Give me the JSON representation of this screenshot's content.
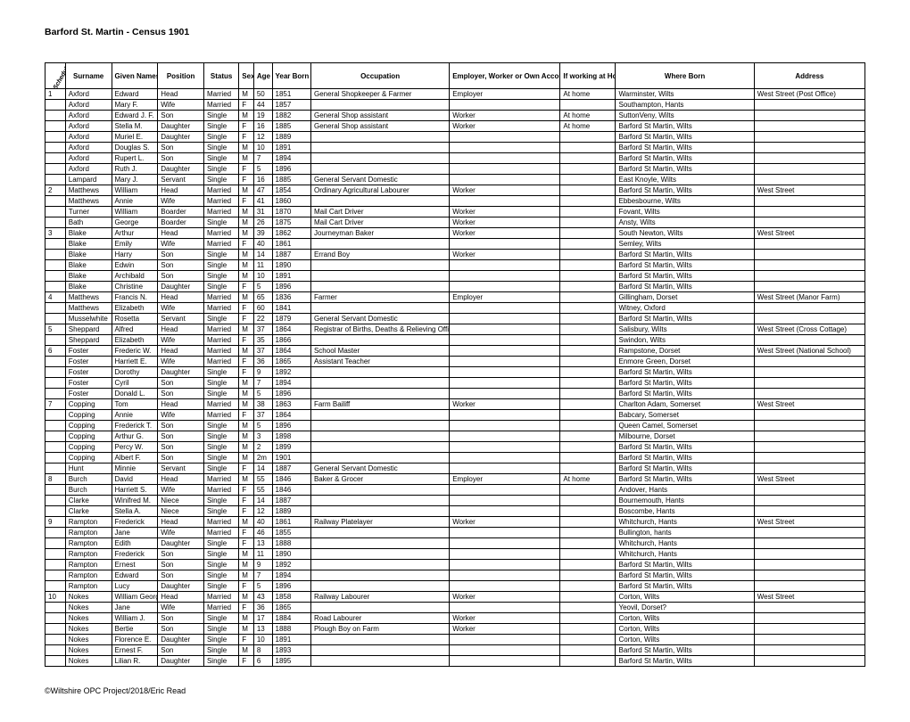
{
  "title": "Barford St. Martin - Census 1901",
  "footer": "©Wiltshire OPC Project/2018/Eric Read",
  "columns": [
    "Schedule",
    "Surname",
    "Given Names",
    "Position",
    "Status",
    "Sex",
    "Age",
    "Year Born",
    "Occupation",
    "Employer, Worker or Own Account",
    "If working at Home",
    "Where Born",
    "Address"
  ],
  "rows": [
    [
      "1",
      "Axford",
      "Edward",
      "Head",
      "Married",
      "M",
      "50",
      "1851",
      "General Shopkeeper & Farmer",
      "Employer",
      "At home",
      "Warminster, Wilts",
      "West Street (Post Office)"
    ],
    [
      "",
      "Axford",
      "Mary F.",
      "Wife",
      "Married",
      "F",
      "44",
      "1857",
      "",
      "",
      "",
      "Southampton, Hants",
      ""
    ],
    [
      "",
      "Axford",
      "Edward J. F.",
      "Son",
      "Single",
      "M",
      "19",
      "1882",
      "General Shop assistant",
      "Worker",
      "At home",
      "SuttonVeny, Wilts",
      ""
    ],
    [
      "",
      "Axford",
      "Stella M.",
      "Daughter",
      "Single",
      "F",
      "16",
      "1885",
      "General Shop assistant",
      "Worker",
      "At home",
      "Barford St Martin, Wilts",
      ""
    ],
    [
      "",
      "Axford",
      "Muriel E.",
      "Daughter",
      "Single",
      "F",
      "12",
      "1889",
      "",
      "",
      "",
      "Barford St Martin, Wilts",
      ""
    ],
    [
      "",
      "Axford",
      "Douglas S.",
      "Son",
      "Single",
      "M",
      "10",
      "1891",
      "",
      "",
      "",
      "Barford St Martin, Wilts",
      ""
    ],
    [
      "",
      "Axford",
      "Rupert L.",
      "Son",
      "Single",
      "M",
      "7",
      "1894",
      "",
      "",
      "",
      "Barford St Martin, Wilts",
      ""
    ],
    [
      "",
      "Axford",
      "Ruth J.",
      "Daughter",
      "Single",
      "F",
      "5",
      "1896",
      "",
      "",
      "",
      "Barford St Martin, Wilts",
      ""
    ],
    [
      "",
      "Lampard",
      "Mary J.",
      "Servant",
      "Single",
      "F",
      "16",
      "1885",
      "General Servant Domestic",
      "",
      "",
      "East Knoyle, Wilts",
      ""
    ],
    [
      "2",
      "Matthews",
      "William",
      "Head",
      "Married",
      "M",
      "47",
      "1854",
      "Ordinary Agricultural Labourer",
      "Worker",
      "",
      "Barford St Martin, Wilts",
      "West Street"
    ],
    [
      "",
      "Matthews",
      "Annie",
      "Wife",
      "Married",
      "F",
      "41",
      "1860",
      "",
      "",
      "",
      "Ebbesbourne, Wilts",
      ""
    ],
    [
      "",
      "Turner",
      "William",
      "Boarder",
      "Married",
      "M",
      "31",
      "1870",
      "Mail Cart Driver",
      "Worker",
      "",
      "Fovant, Wilts",
      ""
    ],
    [
      "",
      "Bath",
      "George",
      "Boarder",
      "Single",
      "M",
      "26",
      "1875",
      "Mail Cart Driver",
      "Worker",
      "",
      "Ansty, Wilts",
      ""
    ],
    [
      "3",
      "Blake",
      "Arthur",
      "Head",
      "Married",
      "M",
      "39",
      "1862",
      "Journeyman Baker",
      "Worker",
      "",
      "South Newton, Wilts",
      "West Street"
    ],
    [
      "",
      "Blake",
      "Emily",
      "Wife",
      "Married",
      "F",
      "40",
      "1861",
      "",
      "",
      "",
      "Semley, Wilts",
      ""
    ],
    [
      "",
      "Blake",
      "Harry",
      "Son",
      "Single",
      "M",
      "14",
      "1887",
      "Errand Boy",
      "Worker",
      "",
      "Barford St Martin, Wilts",
      ""
    ],
    [
      "",
      "Blake",
      "Edwin",
      "Son",
      "Single",
      "M",
      "11",
      "1890",
      "",
      "",
      "",
      "Barford St Martin, Wilts",
      ""
    ],
    [
      "",
      "Blake",
      "Archibald",
      "Son",
      "Single",
      "M",
      "10",
      "1891",
      "",
      "",
      "",
      "Barford St Martin, Wilts",
      ""
    ],
    [
      "",
      "Blake",
      "Christine",
      "Daughter",
      "Single",
      "F",
      "5",
      "1896",
      "",
      "",
      "",
      "Barford St Martin, Wilts",
      ""
    ],
    [
      "4",
      "Matthews",
      "Francis N.",
      "Head",
      "Married",
      "M",
      "65",
      "1836",
      "Farmer",
      "Employer",
      "",
      "Gillingham, Dorset",
      "West Street (Manor Farm)"
    ],
    [
      "",
      "Matthews",
      "Elizabeth",
      "Wife",
      "Married",
      "F",
      "60",
      "1841",
      "",
      "",
      "",
      "Witney, Oxford",
      ""
    ],
    [
      "",
      "Musselwhite",
      "Rosetta",
      "Servant",
      "Single",
      "F",
      "22",
      "1879",
      "General Servant Domestic",
      "",
      "",
      "Barford St Martin, Wilts",
      ""
    ],
    [
      "5",
      "Sheppard",
      "Alfred",
      "Head",
      "Married",
      "M",
      "37",
      "1864",
      "Registrar of Births, Deaths & Relieving Officer",
      "",
      "",
      "Salisbury, Wilts",
      "West Street (Cross Cottage)"
    ],
    [
      "",
      "Sheppard",
      "Elizabeth",
      "Wife",
      "Married",
      "F",
      "35",
      "1866",
      "",
      "",
      "",
      "Swindon, Wilts",
      ""
    ],
    [
      "6",
      "Foster",
      "Frederic W.",
      "Head",
      "Married",
      "M",
      "37",
      "1864",
      "School Master",
      "",
      "",
      "Rampstone, Dorset",
      "West Street (National School)"
    ],
    [
      "",
      "Foster",
      "Harriett E.",
      "Wife",
      "Married",
      "F",
      "36",
      "1865",
      "Assistant Teacher",
      "",
      "",
      "Enmore Green, Dorset",
      ""
    ],
    [
      "",
      "Foster",
      "Dorothy",
      "Daughter",
      "Single",
      "F",
      "9",
      "1892",
      "",
      "",
      "",
      "Barford St Martin, Wilts",
      ""
    ],
    [
      "",
      "Foster",
      "Cyril",
      "Son",
      "Single",
      "M",
      "7",
      "1894",
      "",
      "",
      "",
      "Barford St Martin, Wilts",
      ""
    ],
    [
      "",
      "Foster",
      "Donald L.",
      "Son",
      "Single",
      "M",
      "5",
      "1896",
      "",
      "",
      "",
      "Barford St Martin, Wilts",
      ""
    ],
    [
      "7",
      "Copping",
      "Tom",
      "Head",
      "Married",
      "M",
      "38",
      "1863",
      "Farm Bailiff",
      "Worker",
      "",
      "Charlton Adam, Somerset",
      "West Street"
    ],
    [
      "",
      "Copping",
      "Annie",
      "Wife",
      "Married",
      "F",
      "37",
      "1864",
      "",
      "",
      "",
      "Babcary, Somerset",
      ""
    ],
    [
      "",
      "Copping",
      "Frederick T.",
      "Son",
      "Single",
      "M",
      "5",
      "1896",
      "",
      "",
      "",
      "Queen Camel, Somerset",
      ""
    ],
    [
      "",
      "Copping",
      "Arthur G.",
      "Son",
      "Single",
      "M",
      "3",
      "1898",
      "",
      "",
      "",
      "Milbourne, Dorset",
      ""
    ],
    [
      "",
      "Copping",
      "Percy W.",
      "Son",
      "Single",
      "M",
      "2",
      "1899",
      "",
      "",
      "",
      "Barford St Martin, Wilts",
      ""
    ],
    [
      "",
      "Copping",
      "Albert F.",
      "Son",
      "Single",
      "M",
      "2m",
      "1901",
      "",
      "",
      "",
      "Barford St Martin, Wilts",
      ""
    ],
    [
      "",
      "Hunt",
      "Minnie",
      "Servant",
      "Single",
      "F",
      "14",
      "1887",
      "General Servant Domestic",
      "",
      "",
      "Barford St Martin, Wilts",
      ""
    ],
    [
      "8",
      "Burch",
      "David",
      "Head",
      "Married",
      "M",
      "55",
      "1846",
      "Baker & Grocer",
      "Employer",
      "At home",
      "Barford St Martin, Wilts",
      "West Street"
    ],
    [
      "",
      "Burch",
      "Harriett S.",
      "Wife",
      "Married",
      "F",
      "55",
      "1846",
      "",
      "",
      "",
      "Andover, Hants",
      ""
    ],
    [
      "",
      "Clarke",
      "Winifred M.",
      "Niece",
      "Single",
      "F",
      "14",
      "1887",
      "",
      "",
      "",
      "Bournemouth, Hants",
      ""
    ],
    [
      "",
      "Clarke",
      "Stella A.",
      "Niece",
      "Single",
      "F",
      "12",
      "1889",
      "",
      "",
      "",
      "Boscombe, Hants",
      ""
    ],
    [
      "9",
      "Rampton",
      "Frederick",
      "Head",
      "Married",
      "M",
      "40",
      "1861",
      "Railway Platelayer",
      "Worker",
      "",
      "Whitchurch, Hants",
      "West Street"
    ],
    [
      "",
      "Rampton",
      "Jane",
      "Wife",
      "Married",
      "F",
      "46",
      "1855",
      "",
      "",
      "",
      "Bullington, hants",
      ""
    ],
    [
      "",
      "Rampton",
      "Edith",
      "Daughter",
      "Single",
      "F",
      "13",
      "1888",
      "",
      "",
      "",
      "Whitchurch, Hants",
      ""
    ],
    [
      "",
      "Rampton",
      "Frederick",
      "Son",
      "Single",
      "M",
      "11",
      "1890",
      "",
      "",
      "",
      "Whitchurch, Hants",
      ""
    ],
    [
      "",
      "Rampton",
      "Ernest",
      "Son",
      "Single",
      "M",
      "9",
      "1892",
      "",
      "",
      "",
      "Barford St Martin, Wilts",
      ""
    ],
    [
      "",
      "Rampton",
      "Edward",
      "Son",
      "Single",
      "M",
      "7",
      "1894",
      "",
      "",
      "",
      "Barford St Martin, Wilts",
      ""
    ],
    [
      "",
      "Rampton",
      "Lucy",
      "Daughter",
      "Single",
      "F",
      "5",
      "1896",
      "",
      "",
      "",
      "Barford St Martin, Wilts",
      ""
    ],
    [
      "10",
      "Nokes",
      "William George",
      "Head",
      "Married",
      "M",
      "43",
      "1858",
      "Railway Labourer",
      "Worker",
      "",
      "Corton, Wilts",
      "West Street"
    ],
    [
      "",
      "Nokes",
      "Jane",
      "Wife",
      "Married",
      "F",
      "36",
      "1865",
      "",
      "",
      "",
      "Yeovil, Dorset?",
      ""
    ],
    [
      "",
      "Nokes",
      "William J.",
      "Son",
      "Single",
      "M",
      "17",
      "1884",
      "Road Labourer",
      "Worker",
      "",
      "Corton, Wilts",
      ""
    ],
    [
      "",
      "Nokes",
      "Bertie",
      "Son",
      "Single",
      "M",
      "13",
      "1888",
      "Plough Boy on Farm",
      "Worker",
      "",
      "Corton, Wilts",
      ""
    ],
    [
      "",
      "Nokes",
      "Florence E.",
      "Daughter",
      "Single",
      "F",
      "10",
      "1891",
      "",
      "",
      "",
      "Corton, Wilts",
      ""
    ],
    [
      "",
      "Nokes",
      "Ernest F.",
      "Son",
      "Single",
      "M",
      "8",
      "1893",
      "",
      "",
      "",
      "Barford St Martin, Wilts",
      ""
    ],
    [
      "",
      "Nokes",
      "Lilian R.",
      "Daughter",
      "Single",
      "F",
      "6",
      "1895",
      "",
      "",
      "",
      "Barford St Martin, Wilts",
      ""
    ]
  ]
}
